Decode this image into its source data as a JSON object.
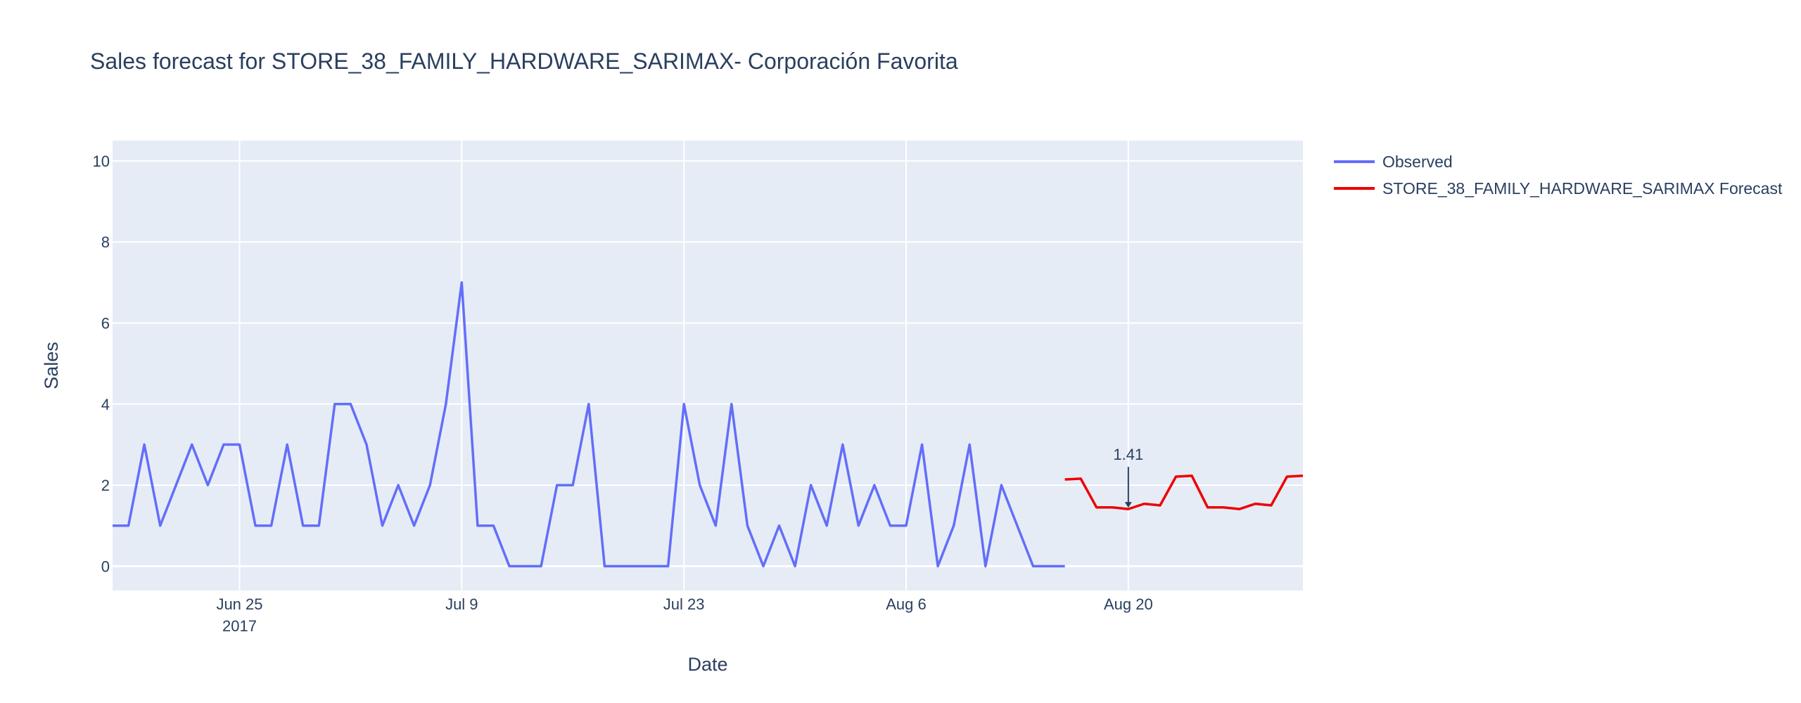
{
  "chart_data": {
    "type": "line",
    "title": "Sales forecast for STORE_38_FAMILY_HARDWARE_SARIMAX- Corporación Favorita",
    "xlabel": "Date",
    "ylabel": "Sales",
    "xlim": [
      "2017-06-17",
      "2017-08-31"
    ],
    "ylim": [
      -0.6,
      10.5
    ],
    "y_ticks": [
      0,
      2,
      4,
      6,
      8,
      10
    ],
    "x_ticks": [
      {
        "date": "2017-06-25",
        "label": "Jun 25",
        "sublabel": "2017"
      },
      {
        "date": "2017-07-09",
        "label": "Jul 9",
        "sublabel": ""
      },
      {
        "date": "2017-07-23",
        "label": "Jul 23",
        "sublabel": ""
      },
      {
        "date": "2017-08-06",
        "label": "Aug 6",
        "sublabel": ""
      },
      {
        "date": "2017-08-20",
        "label": "Aug 20",
        "sublabel": ""
      }
    ],
    "grid": true,
    "legend_placement": "top-right, outside plot",
    "series": [
      {
        "name": "Observed",
        "color": "#636efa",
        "start_date": "2017-06-17",
        "values": [
          1,
          1,
          3,
          1,
          2,
          3,
          2,
          3,
          3,
          1,
          1,
          3,
          1,
          1,
          4,
          4,
          3,
          1,
          2,
          1,
          2,
          4,
          7,
          1,
          1,
          0,
          0,
          0,
          2,
          2,
          4,
          0,
          0,
          0,
          0,
          0,
          4,
          2,
          1,
          4,
          1,
          0,
          1,
          0,
          2,
          1,
          3,
          1,
          2,
          1,
          1,
          3,
          0,
          1,
          3,
          0,
          2,
          1,
          0,
          0,
          0
        ]
      },
      {
        "name": "STORE_38_FAMILY_HARDWARE_SARIMAX Forecast",
        "color": "#ee0000",
        "start_date": "2017-08-16",
        "values": [
          2.14,
          2.16,
          1.45,
          1.45,
          1.41,
          1.54,
          1.5,
          2.21,
          2.23,
          1.45,
          1.45,
          1.41,
          1.54,
          1.5,
          2.21,
          2.23
        ]
      }
    ],
    "annotations": [
      {
        "date": "2017-08-20",
        "y": 1.41,
        "text": "1.41"
      }
    ]
  }
}
